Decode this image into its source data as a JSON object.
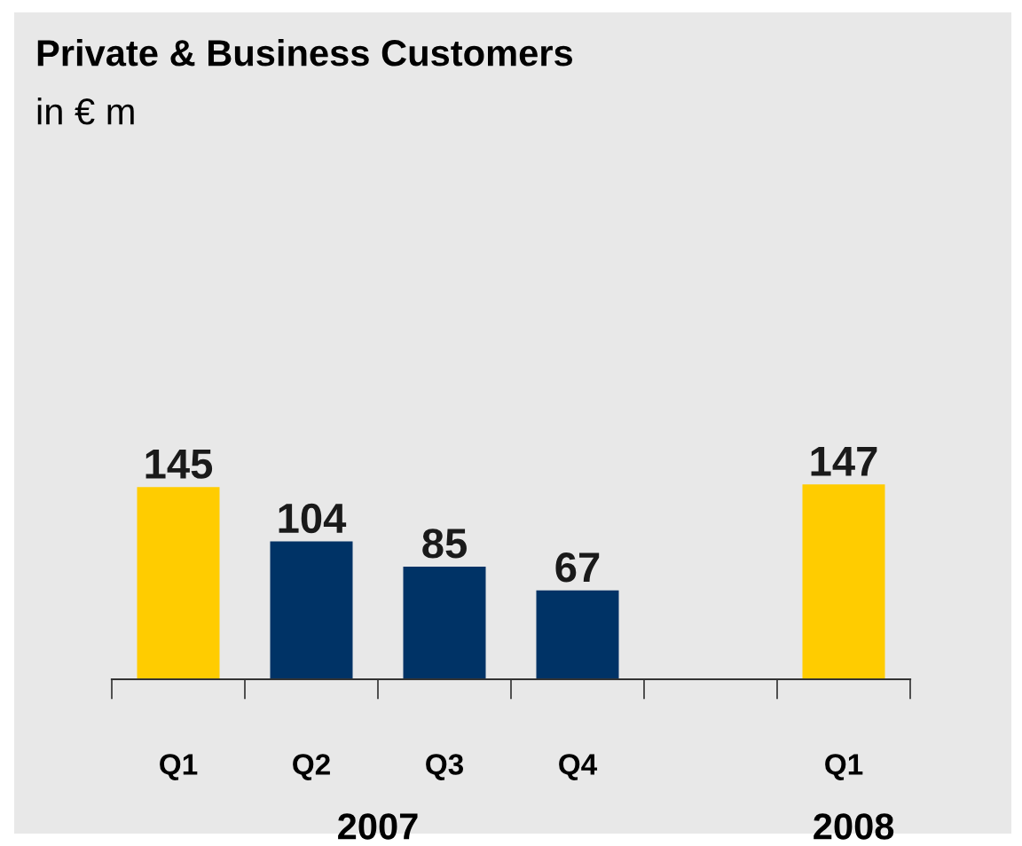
{
  "chart_data": {
    "type": "bar",
    "title": "Private & Business Customers",
    "subtitle": "in € m",
    "categories": [
      "Q1",
      "Q2",
      "Q3",
      "Q4",
      null,
      "Q1"
    ],
    "values": [
      145,
      104,
      85,
      67,
      null,
      147
    ],
    "colors": [
      "#ffcc00",
      "#003366",
      "#003366",
      "#003366",
      "#003366",
      "#ffcc00"
    ],
    "data_labels": true,
    "annotations": [
      "2007",
      "2008"
    ]
  }
}
